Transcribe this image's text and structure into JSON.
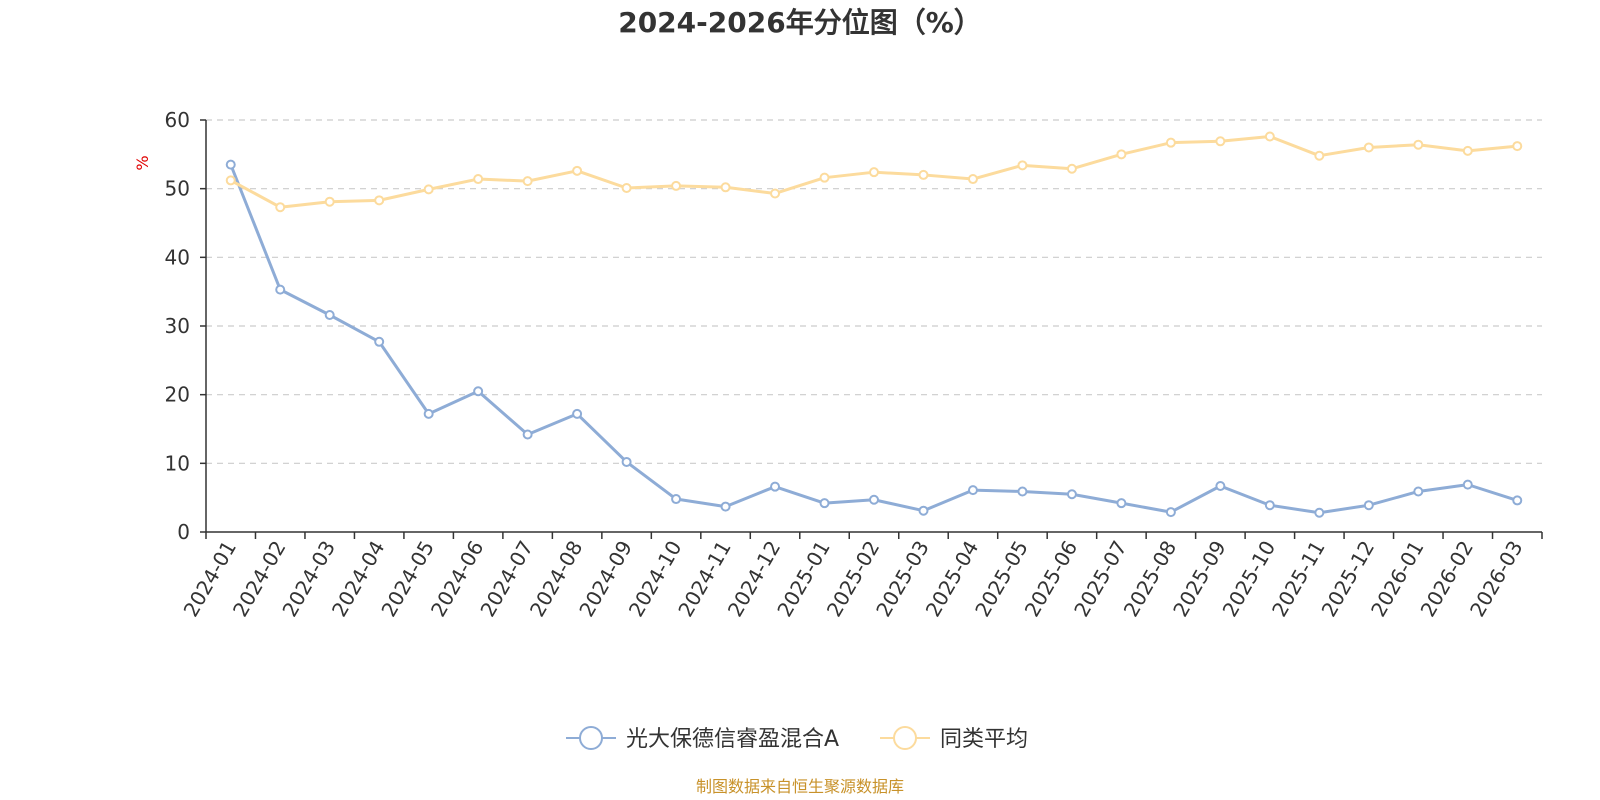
{
  "chart_data": {
    "type": "line",
    "title": "2024-2026年分位图（%）",
    "ylabel": "%",
    "xlabel": "",
    "ylim": [
      0,
      60
    ],
    "yticks": [
      0,
      10,
      20,
      30,
      40,
      50,
      60
    ],
    "grid": "horizontal-dashed",
    "categories": [
      "2024-01",
      "2024-02",
      "2024-03",
      "2024-04",
      "2024-05",
      "2024-06",
      "2024-07",
      "2024-08",
      "2024-09",
      "2024-10",
      "2024-11",
      "2024-12",
      "2025-01",
      "2025-02",
      "2025-03",
      "2025-04",
      "2025-05",
      "2025-06",
      "2025-07",
      "2025-08",
      "2025-09",
      "2025-10",
      "2025-11",
      "2025-12",
      "2026-01",
      "2026-02",
      "2026-03"
    ],
    "series": [
      {
        "name": "光大保德信睿盈混合A",
        "color": "#8eacd6",
        "values": [
          53.5,
          35.3,
          31.6,
          27.7,
          17.2,
          20.5,
          14.2,
          17.2,
          10.2,
          4.8,
          3.7,
          6.6,
          4.2,
          4.7,
          3.1,
          6.1,
          5.9,
          5.5,
          4.2,
          2.9,
          6.7,
          3.9,
          2.8,
          3.9,
          5.9,
          6.9,
          4.6
        ]
      },
      {
        "name": "同类平均",
        "color": "#fcdb9d",
        "values": [
          51.2,
          47.3,
          48.1,
          48.3,
          49.9,
          51.4,
          51.1,
          52.6,
          50.1,
          50.4,
          50.2,
          49.3,
          51.6,
          52.4,
          52.0,
          51.4,
          53.4,
          52.9,
          55.0,
          56.7,
          56.9,
          57.6,
          54.8,
          56.0,
          56.4,
          55.5,
          56.2
        ]
      }
    ],
    "legend_position": "bottom-center",
    "source_note": "制图数据来自恒生聚源数据库",
    "colors": {
      "axis": "#333333",
      "grid": "#cccccc",
      "unit_label": "#e00000",
      "source_note": "#c8922a",
      "marker_fill": "#ffffff"
    }
  }
}
